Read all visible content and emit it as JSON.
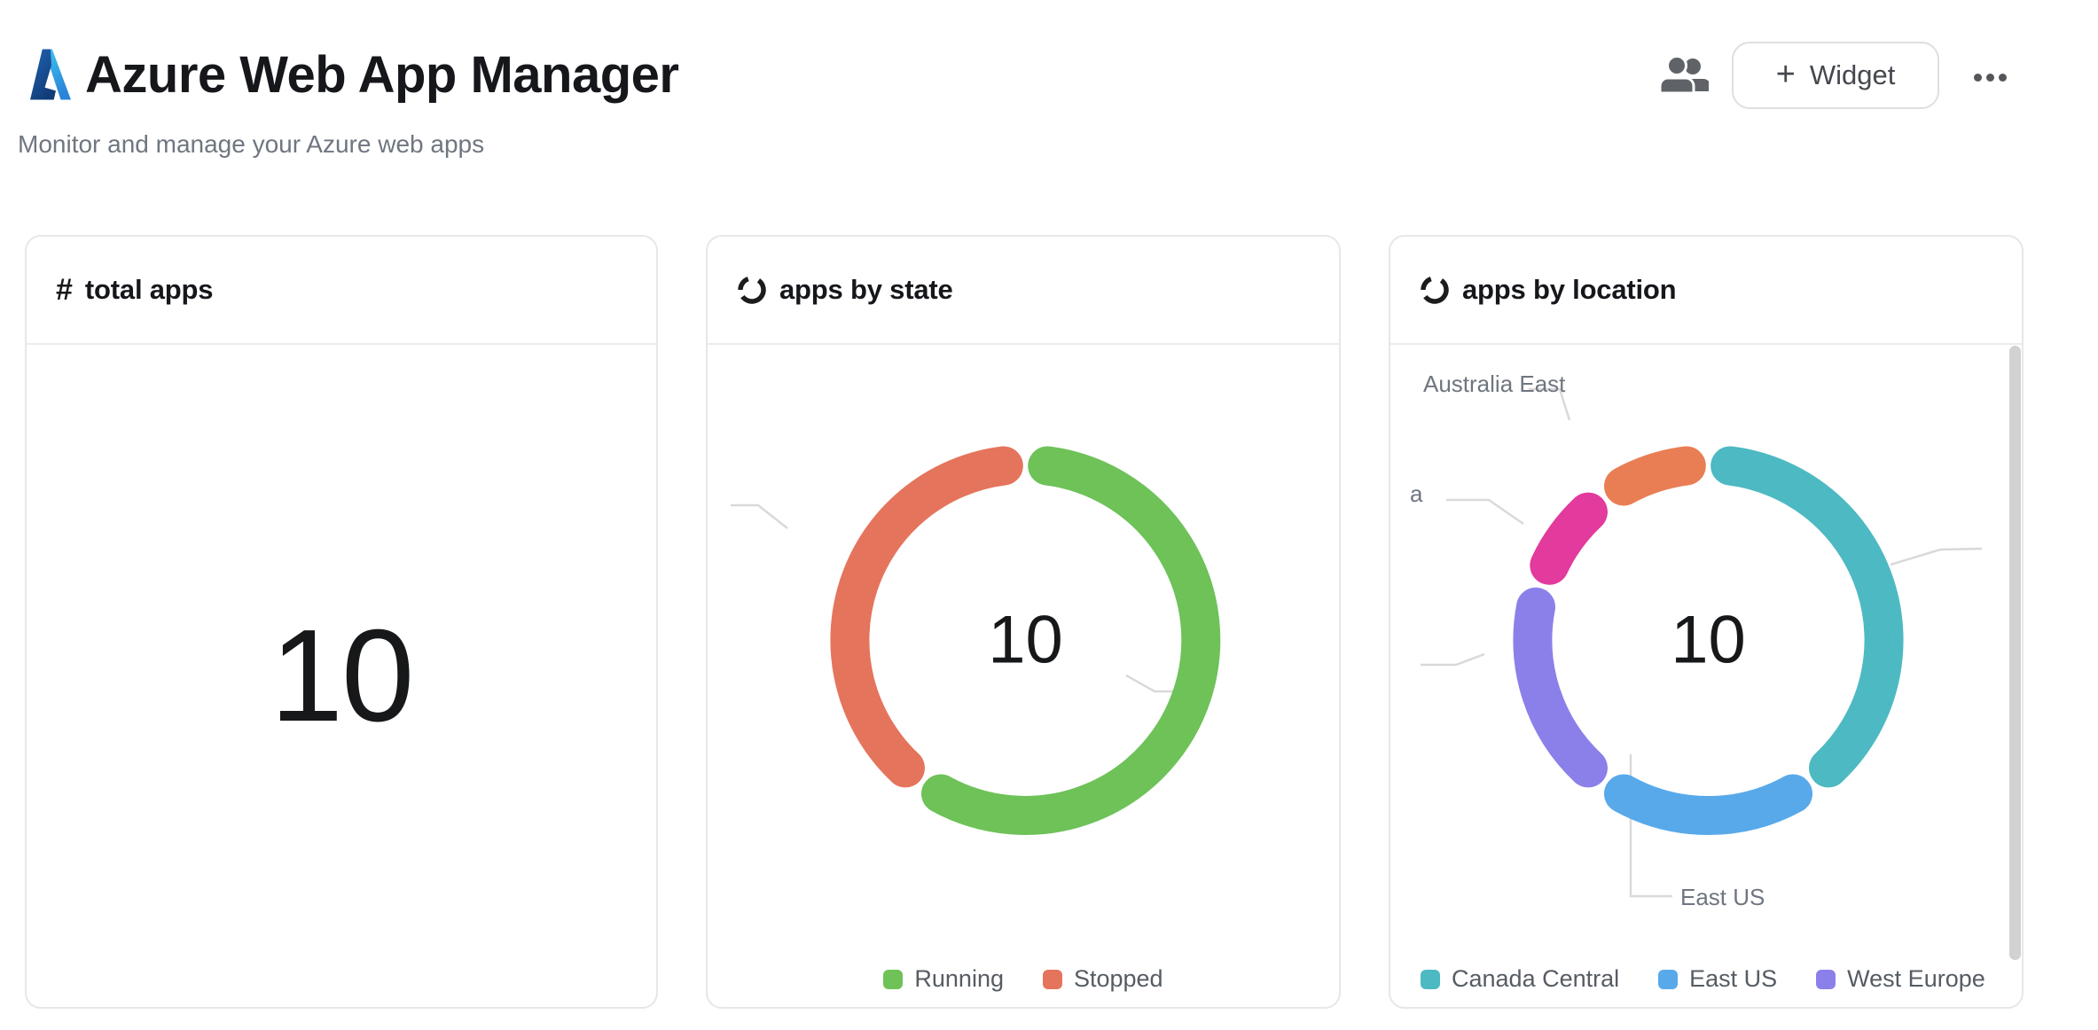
{
  "app": {
    "title": "Azure Web App Manager",
    "subtitle": "Monitor and manage your Azure web apps",
    "actions": {
      "share_icon": "people",
      "add_widget": {
        "plus": "+",
        "label": "Widget"
      },
      "more_icon": "ellipsis"
    }
  },
  "cards": {
    "total_apps": {
      "icon_glyph": "#",
      "title": "total apps",
      "value": "10"
    },
    "apps_by_state": {
      "icon": "donut-ring",
      "title": "apps by state"
    },
    "apps_by_location": {
      "icon": "donut-ring",
      "title": "apps by location"
    }
  },
  "chart_data": [
    {
      "id": "apps_by_state",
      "type": "donut",
      "title": "apps by state",
      "total": 10,
      "center_label": "10",
      "legend_position": "bottom-center",
      "series": [
        {
          "name": "Running",
          "value": 6,
          "color": "#6ec258"
        },
        {
          "name": "Stopped",
          "value": 4,
          "color": "#e5745c"
        }
      ]
    },
    {
      "id": "apps_by_location",
      "type": "donut",
      "title": "apps by location",
      "total": 10,
      "center_label": "10",
      "legend_position": "bottom-left",
      "series": [
        {
          "name": "Canada Central",
          "value": 4,
          "color": "#4db9c2"
        },
        {
          "name": "East US",
          "value": 2,
          "color": "#58a9ea"
        },
        {
          "name": "West Europe",
          "value": 2,
          "color": "#8b80e9"
        },
        {
          "name": "a",
          "value": 1,
          "color": "#e23a9d",
          "label_clipped": true
        },
        {
          "name": "Australia East",
          "value": 1,
          "color": "#e97e54"
        }
      ],
      "visible_callout_labels": [
        "Australia East",
        "a",
        "East US"
      ]
    }
  ],
  "colors": {
    "text_primary": "#17181a",
    "text_secondary": "#6f7680",
    "card_border": "#e7e7e7",
    "callout_line": "#d9d9d9",
    "scrollbar": "#d2d2d2",
    "logo_blue_dark": "#1b4e9b",
    "logo_blue_light": "#35c1f1"
  }
}
